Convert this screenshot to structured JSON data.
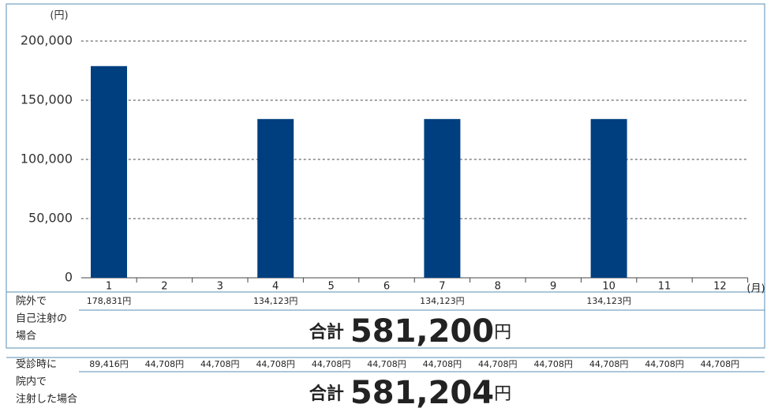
{
  "chart_data": {
    "type": "bar",
    "y_unit": "(円)",
    "x_unit": "(月)",
    "categories": [
      "1",
      "2",
      "3",
      "4",
      "5",
      "6",
      "7",
      "8",
      "9",
      "10",
      "11",
      "12"
    ],
    "values": [
      178831,
      null,
      null,
      134123,
      null,
      null,
      134123,
      null,
      null,
      134123,
      null,
      null
    ],
    "value_labels": [
      "178,831円",
      null,
      null,
      "134,123円",
      null,
      null,
      "134,123円",
      null,
      null,
      "134,123円",
      null,
      null
    ],
    "color": "#003f7f",
    "ylim": [
      0,
      200000
    ],
    "yticks": [
      0,
      {
        "value": 50000,
        "label": "50,000"
      },
      {
        "value": 100000,
        "label": "100,000"
      },
      {
        "value": 150000,
        "label": "150,000"
      },
      {
        "value": 200000,
        "label": "200,000"
      }
    ],
    "grid": true
  },
  "rows": [
    {
      "label_lines": [
        "院外で",
        "自己注射の",
        "場合"
      ],
      "total_label": "合計",
      "total": "581,200",
      "total_unit": "円"
    },
    {
      "label_lines": [
        "受診時に",
        "院内で",
        "注射した場合"
      ],
      "cells": [
        "89,416円",
        "44,708円",
        "44,708円",
        "44,708円",
        "44,708円",
        "44,708円",
        "44,708円",
        "44,708円",
        "44,708円",
        "44,708円",
        "44,708円",
        "44,708円"
      ],
      "total_label": "合計",
      "total": "581,204",
      "total_unit": "円"
    }
  ]
}
